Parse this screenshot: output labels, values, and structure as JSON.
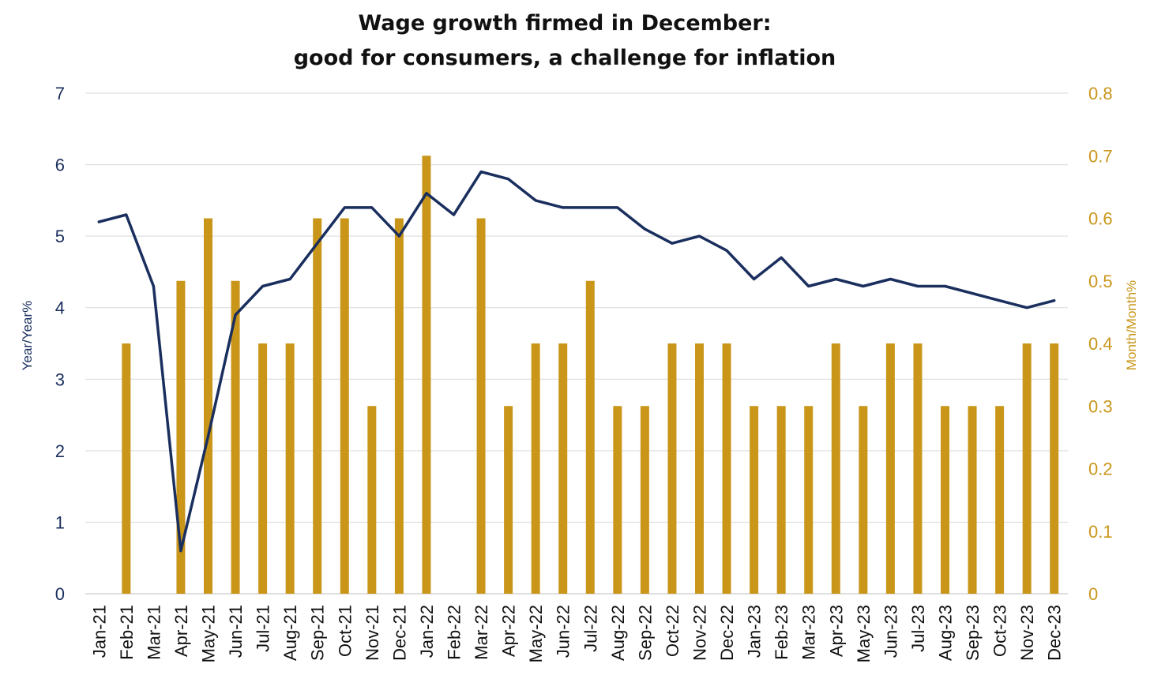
{
  "chart_data": {
    "type": "bar",
    "title_lines": [
      "Wage growth firmed in December:",
      "good for consumers, a challenge for inflation"
    ],
    "categories": [
      "Jan-21",
      "Feb-21",
      "Mar-21",
      "Apr-21",
      "May-21",
      "Jun-21",
      "Jul-21",
      "Aug-21",
      "Sep-21",
      "Oct-21",
      "Nov-21",
      "Dec-21",
      "Jan-22",
      "Feb-22",
      "Mar-22",
      "Apr-22",
      "May-22",
      "Jun-22",
      "Jul-22",
      "Aug-22",
      "Sep-22",
      "Oct-22",
      "Nov-22",
      "Dec-22",
      "Jan-23",
      "Feb-23",
      "Mar-23",
      "Apr-23",
      "May-23",
      "Jun-23",
      "Jul-23",
      "Aug-23",
      "Sep-23",
      "Oct-23",
      "Nov-23",
      "Dec-23"
    ],
    "series": [
      {
        "type": "bar",
        "axis": "right",
        "color": "#c9961a",
        "values": [
          0,
          0.4,
          0,
          0.5,
          0.6,
          0.5,
          0.4,
          0.4,
          0.6,
          0.6,
          0.3,
          0.6,
          0.7,
          0,
          0.6,
          0.3,
          0.4,
          0.4,
          0.5,
          0.3,
          0.3,
          0.4,
          0.4,
          0.4,
          0.3,
          0.3,
          0.3,
          0.4,
          0.3,
          0.4,
          0.4,
          0.3,
          0.3,
          0.3,
          0.4,
          0.4
        ]
      },
      {
        "type": "line",
        "axis": "left",
        "color": "#1a2f5e",
        "values": [
          5.2,
          5.3,
          4.3,
          0.6,
          2.2,
          3.9,
          4.3,
          4.4,
          4.9,
          5.4,
          5.4,
          5.0,
          5.6,
          5.3,
          5.9,
          5.8,
          5.5,
          5.4,
          5.4,
          5.4,
          5.1,
          4.9,
          5.0,
          4.8,
          4.4,
          4.7,
          4.3,
          4.4,
          4.3,
          4.4,
          4.3,
          4.3,
          4.2,
          4.1,
          4.0,
          4.1
        ]
      }
    ],
    "y_left": {
      "label": "Year/Year%",
      "lim": [
        0,
        7
      ],
      "ticks": [
        "0",
        "1",
        "2",
        "3",
        "4",
        "5",
        "6",
        "7"
      ]
    },
    "y_right": {
      "label": "Month/Month%",
      "lim": [
        0,
        0.8
      ],
      "ticks": [
        "0",
        "0.1",
        "0.2",
        "0.3",
        "0.4",
        "0.5",
        "0.6",
        "0.7",
        "0.8"
      ]
    },
    "grid": true,
    "legend": "none"
  }
}
